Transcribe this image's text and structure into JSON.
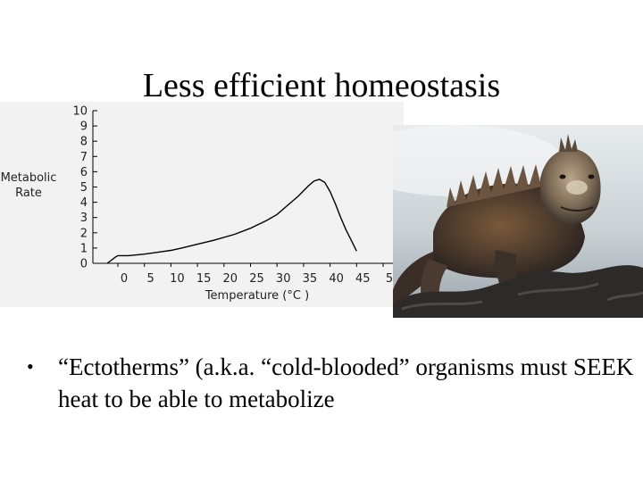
{
  "slide": {
    "title": "Less efficient homeostasis",
    "bullet": "“Ectotherms” (a.k.a. “cold-blooded” organisms must SEEK heat to be able to metabolize"
  },
  "photo": {
    "subject": "iguana"
  },
  "chart_data": {
    "type": "line",
    "ylabel": "Metabolic Rate",
    "xlabel": "Temperature (°C )",
    "xlim": [
      -2,
      50
    ],
    "ylim": [
      0,
      10
    ],
    "yticks": [
      "0",
      "1",
      "2",
      "3",
      "4",
      "5",
      "6",
      "7",
      "8",
      "9",
      "10"
    ],
    "xticks": [
      "0",
      "5",
      "10",
      "15",
      "20",
      "25",
      "30",
      "35",
      "40",
      "45",
      "5"
    ],
    "grid": false,
    "series": [
      {
        "x": [
          -2,
          -0.5,
          0,
          2,
          5,
          8,
          10,
          12,
          15,
          18,
          20,
          22,
          25,
          28,
          30,
          32,
          34,
          36,
          37,
          38,
          39,
          40,
          41,
          42,
          43,
          44,
          45
        ],
        "y": [
          0,
          0.4,
          0.5,
          0.5,
          0.6,
          0.75,
          0.85,
          1.0,
          1.25,
          1.5,
          1.7,
          1.9,
          2.3,
          2.8,
          3.2,
          3.8,
          4.4,
          5.1,
          5.4,
          5.5,
          5.3,
          4.7,
          3.9,
          3.0,
          2.2,
          1.5,
          0.8
        ]
      }
    ],
    "colors": {
      "line": "#000000",
      "background": "#f2f2f2"
    }
  }
}
